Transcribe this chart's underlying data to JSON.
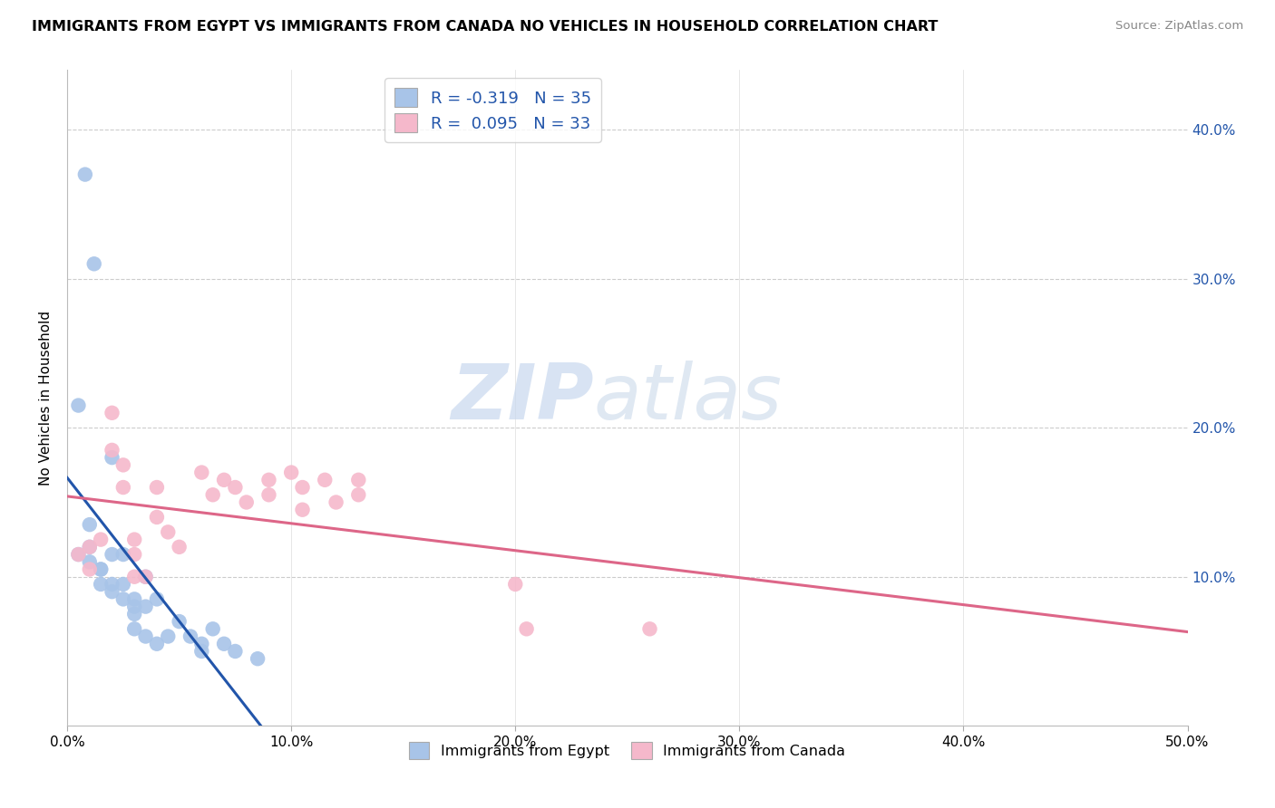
{
  "title": "IMMIGRANTS FROM EGYPT VS IMMIGRANTS FROM CANADA NO VEHICLES IN HOUSEHOLD CORRELATION CHART",
  "source": "Source: ZipAtlas.com",
  "ylabel": "No Vehicles in Household",
  "right_yticks": [
    "40.0%",
    "30.0%",
    "20.0%",
    "10.0%"
  ],
  "right_ytick_vals": [
    0.4,
    0.3,
    0.2,
    0.1
  ],
  "xlim": [
    0.0,
    0.5
  ],
  "ylim": [
    0.0,
    0.44
  ],
  "legend_egypt": "R = -0.319   N = 35",
  "legend_canada": "R =  0.095   N = 33",
  "legend_label_egypt": "Immigrants from Egypt",
  "legend_label_canada": "Immigrants from Canada",
  "egypt_color": "#a8c4e8",
  "canada_color": "#f5b8cb",
  "egypt_line_color": "#2255aa",
  "canada_line_color": "#dd6688",
  "background_color": "#ffffff",
  "grid_color": "#cccccc",
  "watermark_zip": "ZIP",
  "watermark_atlas": "atlas",
  "egypt_x": [
    0.008,
    0.012,
    0.005,
    0.01,
    0.01,
    0.005,
    0.01,
    0.015,
    0.015,
    0.02,
    0.015,
    0.02,
    0.02,
    0.02,
    0.025,
    0.025,
    0.025,
    0.03,
    0.03,
    0.03,
    0.03,
    0.035,
    0.035,
    0.035,
    0.04,
    0.04,
    0.045,
    0.05,
    0.055,
    0.06,
    0.06,
    0.065,
    0.07,
    0.075,
    0.085
  ],
  "egypt_y": [
    0.37,
    0.31,
    0.215,
    0.135,
    0.12,
    0.115,
    0.11,
    0.105,
    0.095,
    0.18,
    0.105,
    0.115,
    0.095,
    0.09,
    0.115,
    0.095,
    0.085,
    0.085,
    0.08,
    0.075,
    0.065,
    0.1,
    0.08,
    0.06,
    0.085,
    0.055,
    0.06,
    0.07,
    0.06,
    0.055,
    0.05,
    0.065,
    0.055,
    0.05,
    0.045
  ],
  "canada_x": [
    0.005,
    0.01,
    0.01,
    0.015,
    0.02,
    0.02,
    0.025,
    0.025,
    0.03,
    0.03,
    0.03,
    0.035,
    0.04,
    0.04,
    0.045,
    0.05,
    0.06,
    0.065,
    0.07,
    0.075,
    0.08,
    0.09,
    0.09,
    0.1,
    0.105,
    0.105,
    0.115,
    0.12,
    0.13,
    0.13,
    0.2,
    0.205,
    0.26
  ],
  "canada_y": [
    0.115,
    0.12,
    0.105,
    0.125,
    0.185,
    0.21,
    0.175,
    0.16,
    0.125,
    0.115,
    0.1,
    0.1,
    0.16,
    0.14,
    0.13,
    0.12,
    0.17,
    0.155,
    0.165,
    0.16,
    0.15,
    0.165,
    0.155,
    0.17,
    0.16,
    0.145,
    0.165,
    0.15,
    0.165,
    0.155,
    0.095,
    0.065,
    0.065
  ]
}
